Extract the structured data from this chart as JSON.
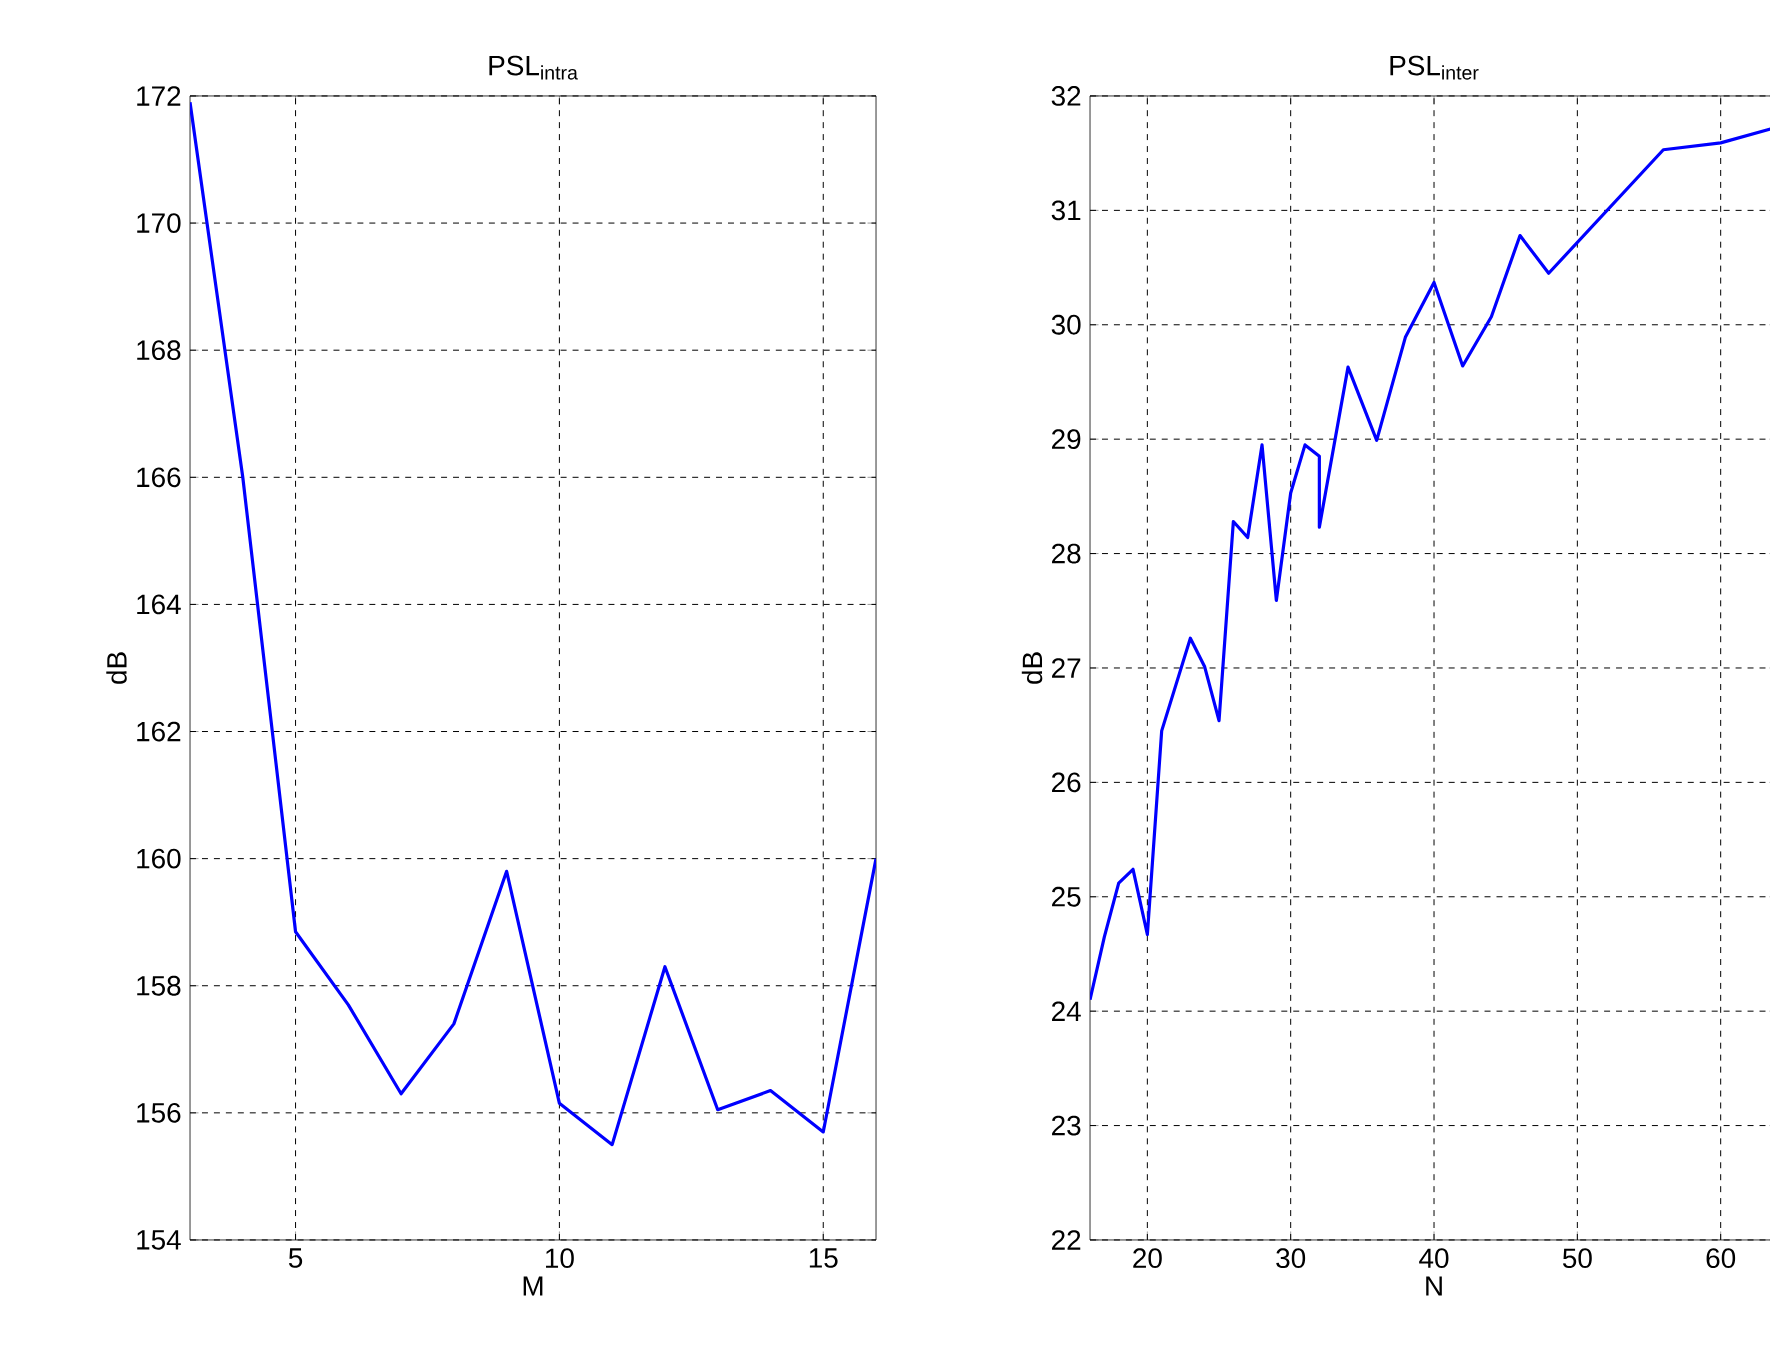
{
  "chart_data": [
    {
      "type": "line",
      "title": "PSL$_{intra}$",
      "xlabel": "M",
      "ylabel": "dB",
      "color": "#0000ff",
      "grid": true,
      "x": [
        3,
        4,
        5,
        6,
        7,
        8,
        9,
        10,
        11,
        12,
        13,
        14,
        15,
        16
      ],
      "values": [
        171.9,
        166.0,
        158.85,
        157.7,
        156.3,
        157.4,
        159.8,
        156.15,
        155.5,
        158.3,
        156.05,
        156.35,
        155.7,
        160.0
      ],
      "xlim": [
        3,
        16
      ],
      "ylim": [
        154,
        172
      ],
      "xticks": [
        5,
        10,
        15
      ],
      "yticks": [
        154,
        156,
        158,
        160,
        162,
        164,
        166,
        168,
        170,
        172
      ]
    },
    {
      "type": "line",
      "title": "PSL$_{inter}$",
      "xlabel": "N",
      "ylabel": "dB",
      "color": "#0000ff",
      "grid": true,
      "x": [
        16,
        17,
        18,
        19,
        20,
        21,
        23,
        24,
        25,
        26,
        27,
        28,
        29,
        30,
        31,
        32,
        32,
        34,
        36,
        38,
        40,
        42,
        44,
        46,
        48,
        56,
        60,
        64
      ],
      "values": [
        24.1,
        24.65,
        25.12,
        25.24,
        24.67,
        26.45,
        27.26,
        27.01,
        26.54,
        28.28,
        28.14,
        28.95,
        27.59,
        28.53,
        28.95,
        28.85,
        28.23,
        29.63,
        28.99,
        29.89,
        30.37,
        29.64,
        30.07,
        30.78,
        30.45,
        31.53,
        31.59,
        31.73
      ],
      "xlim": [
        16,
        64
      ],
      "ylim": [
        22,
        32
      ],
      "xticks": [
        20,
        30,
        40,
        50,
        60
      ],
      "yticks": [
        22,
        23,
        24,
        25,
        26,
        27,
        28,
        29,
        30,
        31,
        32
      ]
    }
  ]
}
